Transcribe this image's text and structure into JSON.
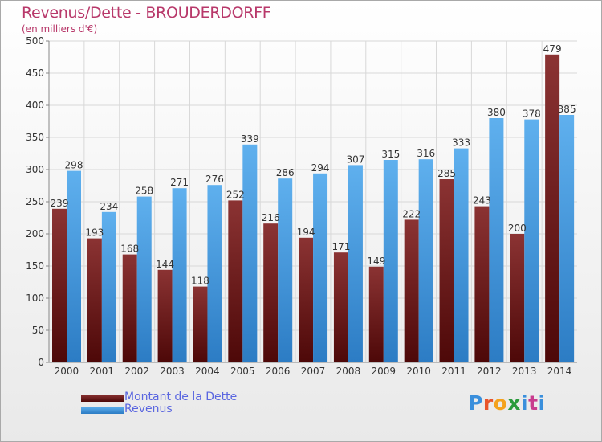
{
  "chart_data": {
    "type": "bar",
    "title": "Revenus/Dette - BROUDERDORFF",
    "subtitle": "(en milliers d'€)",
    "categories": [
      "2000",
      "2001",
      "2002",
      "2003",
      "2004",
      "2005",
      "2006",
      "2007",
      "2008",
      "2009",
      "2010",
      "2011",
      "2012",
      "2013",
      "2014"
    ],
    "series": [
      {
        "name": "Montant de la Dette",
        "color": "#7a1f1f",
        "values": [
          239,
          193,
          168,
          144,
          118,
          252,
          216,
          194,
          171,
          149,
          222,
          285,
          243,
          200,
          479
        ]
      },
      {
        "name": "Revenus",
        "color": "#3a8fdc",
        "values": [
          298,
          234,
          258,
          271,
          276,
          339,
          286,
          294,
          307,
          315,
          316,
          333,
          380,
          378,
          385
        ]
      }
    ],
    "ylim": [
      0,
      500
    ],
    "yticks": [
      0,
      50,
      100,
      150,
      200,
      250,
      300,
      350,
      400,
      450,
      500
    ],
    "grid": true,
    "legend_position": "bottom-left"
  },
  "logo": {
    "text": "Proxiti",
    "letter_colors": [
      "#3a8fdc",
      "#e8542a",
      "#f4a21d",
      "#2b9b3c",
      "#3a8fdc",
      "#c83c8e",
      "#3a8fdc"
    ]
  }
}
